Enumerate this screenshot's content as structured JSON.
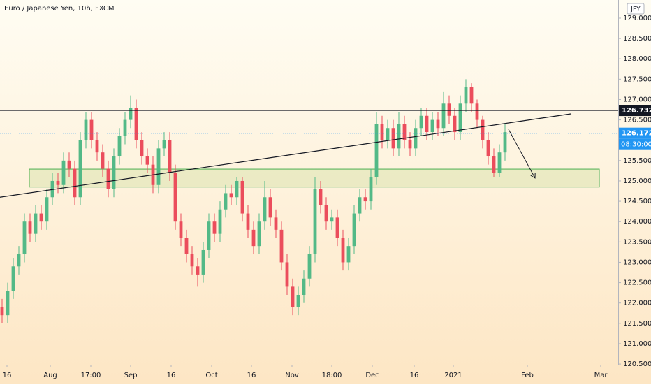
{
  "chart_data": {
    "type": "candlestick",
    "title": "Euro / Japanese Yen, 10h, FXCM",
    "currency": "JPY",
    "up_color": "#53b987",
    "down_color": "#eb4d5c",
    "open": [
      121.9,
      121.7,
      122.3,
      122.9,
      123.2,
      124.0,
      123.7,
      124.2,
      124.0,
      124.6,
      125.0,
      124.9,
      125.5,
      125.3,
      124.6,
      126.0,
      126.5,
      126.0,
      125.7,
      125.3,
      124.8,
      125.6,
      126.1,
      126.5,
      126.8,
      126.0,
      125.6,
      125.4,
      124.9,
      125.8,
      126.0,
      125.2,
      124.0,
      123.6,
      123.2,
      122.9,
      122.7,
      123.3,
      124.0,
      123.7,
      124.3,
      124.7,
      124.6,
      125.0,
      124.2,
      123.8,
      123.4,
      124.0,
      124.6,
      124.1,
      123.8,
      123.0,
      122.4,
      121.9,
      122.2,
      122.6,
      123.2,
      124.8,
      124.4,
      124.0,
      124.1,
      123.6,
      123.0,
      123.4,
      124.2,
      124.6,
      124.5,
      125.1,
      126.4,
      126.0,
      126.3,
      125.8,
      126.4,
      126.0,
      125.8,
      126.3,
      126.6,
      126.2,
      126.5,
      126.3,
      126.9,
      126.6,
      126.2,
      126.9,
      127.3,
      126.9,
      126.5,
      126.0,
      125.6,
      125.2,
      125.7
    ],
    "high": [
      122.1,
      122.5,
      123.1,
      123.4,
      124.2,
      124.2,
      124.4,
      124.4,
      124.8,
      125.2,
      125.2,
      125.7,
      125.7,
      125.5,
      126.2,
      126.7,
      126.7,
      126.2,
      125.9,
      125.5,
      125.8,
      126.3,
      126.7,
      127.1,
      127.0,
      126.2,
      125.8,
      125.6,
      126.0,
      126.2,
      126.2,
      125.4,
      124.2,
      123.8,
      123.4,
      123.1,
      123.5,
      124.2,
      124.2,
      124.5,
      124.9,
      124.9,
      125.1,
      125.1,
      124.4,
      124.0,
      124.2,
      125.0,
      124.8,
      124.3,
      124.0,
      123.2,
      122.6,
      122.4,
      122.8,
      123.4,
      125.1,
      125.0,
      124.6,
      124.3,
      124.3,
      123.8,
      123.6,
      124.4,
      124.8,
      124.8,
      125.3,
      126.7,
      126.6,
      126.5,
      126.5,
      126.7,
      126.6,
      126.2,
      126.5,
      126.8,
      126.8,
      126.7,
      126.7,
      127.2,
      127.1,
      126.8,
      127.1,
      127.5,
      127.4,
      127.0,
      126.6,
      126.2,
      125.8,
      125.9,
      126.4
    ],
    "low": [
      121.5,
      121.5,
      122.1,
      122.7,
      123.0,
      123.5,
      123.5,
      123.8,
      123.8,
      124.4,
      124.7,
      124.7,
      125.1,
      124.4,
      124.4,
      125.8,
      125.8,
      125.5,
      125.1,
      124.6,
      124.6,
      125.4,
      125.9,
      126.3,
      125.8,
      125.4,
      125.2,
      124.7,
      124.7,
      125.6,
      125.0,
      123.8,
      123.4,
      123.0,
      122.7,
      122.4,
      122.5,
      123.1,
      123.5,
      123.5,
      124.1,
      124.4,
      124.4,
      124.0,
      123.6,
      123.2,
      123.2,
      123.8,
      123.9,
      123.6,
      122.8,
      122.2,
      121.7,
      121.7,
      122.0,
      122.4,
      123.0,
      124.2,
      123.8,
      123.8,
      123.4,
      122.8,
      122.8,
      123.2,
      124.0,
      124.3,
      124.3,
      124.9,
      125.8,
      125.8,
      125.6,
      125.6,
      125.8,
      125.6,
      125.6,
      126.1,
      126.0,
      126.0,
      126.1,
      126.1,
      126.4,
      126.0,
      126.0,
      126.7,
      126.7,
      126.3,
      125.8,
      125.4,
      125.1,
      125.1,
      125.5
    ],
    "close": [
      121.7,
      122.3,
      122.9,
      123.2,
      124.0,
      123.7,
      124.2,
      124.0,
      124.6,
      125.0,
      124.9,
      125.5,
      125.3,
      124.6,
      126.0,
      126.5,
      126.0,
      125.7,
      125.3,
      124.8,
      125.6,
      126.1,
      126.5,
      126.8,
      126.0,
      125.6,
      125.4,
      124.9,
      125.8,
      126.0,
      125.2,
      124.0,
      123.6,
      123.2,
      122.9,
      122.7,
      123.3,
      124.0,
      123.7,
      124.3,
      124.7,
      124.6,
      125.0,
      124.2,
      123.8,
      123.4,
      124.0,
      124.6,
      124.1,
      123.8,
      123.0,
      122.4,
      121.9,
      122.2,
      122.6,
      123.2,
      124.8,
      124.4,
      124.0,
      124.1,
      123.6,
      123.0,
      123.4,
      124.2,
      124.6,
      124.5,
      125.1,
      126.4,
      126.0,
      126.3,
      125.8,
      126.4,
      126.0,
      125.8,
      126.3,
      126.6,
      126.2,
      126.5,
      126.3,
      126.9,
      126.6,
      126.2,
      126.9,
      127.3,
      126.9,
      126.5,
      126.0,
      125.6,
      125.2,
      125.7,
      126.2
    ],
    "xlim": [
      -0.375,
      110.25
    ],
    "xticks": [
      {
        "value": 0.875,
        "label": "16"
      },
      {
        "value": 8.625,
        "label": "Aug"
      },
      {
        "value": 15.875,
        "label": "17:00"
      },
      {
        "value": 23,
        "label": "Sep"
      },
      {
        "value": 30.25,
        "label": "16"
      },
      {
        "value": 37.5,
        "label": "Oct"
      },
      {
        "value": 44.625,
        "label": "16"
      },
      {
        "value": 51.875,
        "label": "Nov"
      },
      {
        "value": 59,
        "label": "18:00"
      },
      {
        "value": 66.25,
        "label": "Dec"
      },
      {
        "value": 73.75,
        "label": "16"
      },
      {
        "value": 80.75,
        "label": "2021"
      },
      {
        "value": 94,
        "label": "Feb"
      },
      {
        "value": 107.125,
        "label": "Mar"
      }
    ],
    "ylim": [
      120.484,
      129.446
    ],
    "yticks": [
      {
        "value": 129,
        "label": "129.000"
      },
      {
        "value": 128.5,
        "label": "128.500"
      },
      {
        "value": 128,
        "label": "128.000"
      },
      {
        "value": 127.5,
        "label": "127.500"
      },
      {
        "value": 127,
        "label": "127.000"
      },
      {
        "value": 126.5,
        "label": "126.500"
      },
      {
        "value": 125.5,
        "label": "125.500"
      },
      {
        "value": 125,
        "label": "125.000"
      },
      {
        "value": 124.5,
        "label": "124.500"
      },
      {
        "value": 124,
        "label": "124.000"
      },
      {
        "value": 123.5,
        "label": "123.500"
      },
      {
        "value": 123,
        "label": "123.000"
      },
      {
        "value": 122.5,
        "label": "122.500"
      },
      {
        "value": 122,
        "label": "122.000"
      },
      {
        "value": 121.5,
        "label": "121.500"
      },
      {
        "value": 121,
        "label": "121.000"
      },
      {
        "value": 120.5,
        "label": "120.500"
      }
    ],
    "price_lines": [
      {
        "value": 126.732,
        "label": "126.732",
        "color": "#131722",
        "style": "solid"
      },
      {
        "value": 126.172,
        "label": "126.172",
        "color": "#2196f3",
        "style": "dotted"
      }
    ],
    "countdown": "08:30:00",
    "trend_line": {
      "x": [
        -0.375,
        101.875
      ],
      "y": [
        124.6,
        126.65
      ]
    },
    "zone": {
      "x": [
        4.875,
        106.875
      ],
      "y": [
        124.85,
        125.29
      ]
    },
    "arrow": {
      "x": [
        90.625,
        95.375
      ],
      "y": [
        126.27,
        125.07
      ]
    }
  }
}
